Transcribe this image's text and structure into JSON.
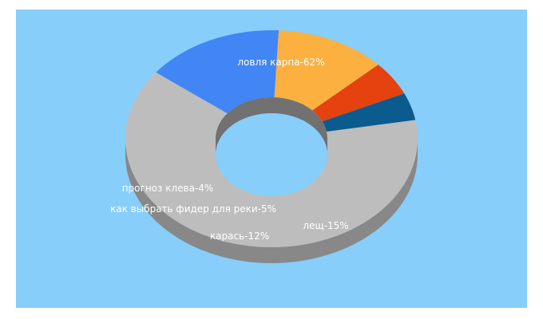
{
  "chart_data": {
    "type": "pie",
    "style": "3d-donut",
    "background": "#87cefa",
    "slices": [
      {
        "label": "ловля карпа-62%",
        "value": 62,
        "color": "#bdbdbd"
      },
      {
        "label": "лещ-15%",
        "value": 15,
        "color": "#4285f4"
      },
      {
        "label": "карась-12%",
        "value": 12,
        "color": "#fbb040"
      },
      {
        "label": "как выбрать фидер для реки-5%",
        "value": 5,
        "color": "#e5420f"
      },
      {
        "label": "прогноз клева-4%",
        "value": 4,
        "color": "#0b5b8f"
      }
    ]
  }
}
